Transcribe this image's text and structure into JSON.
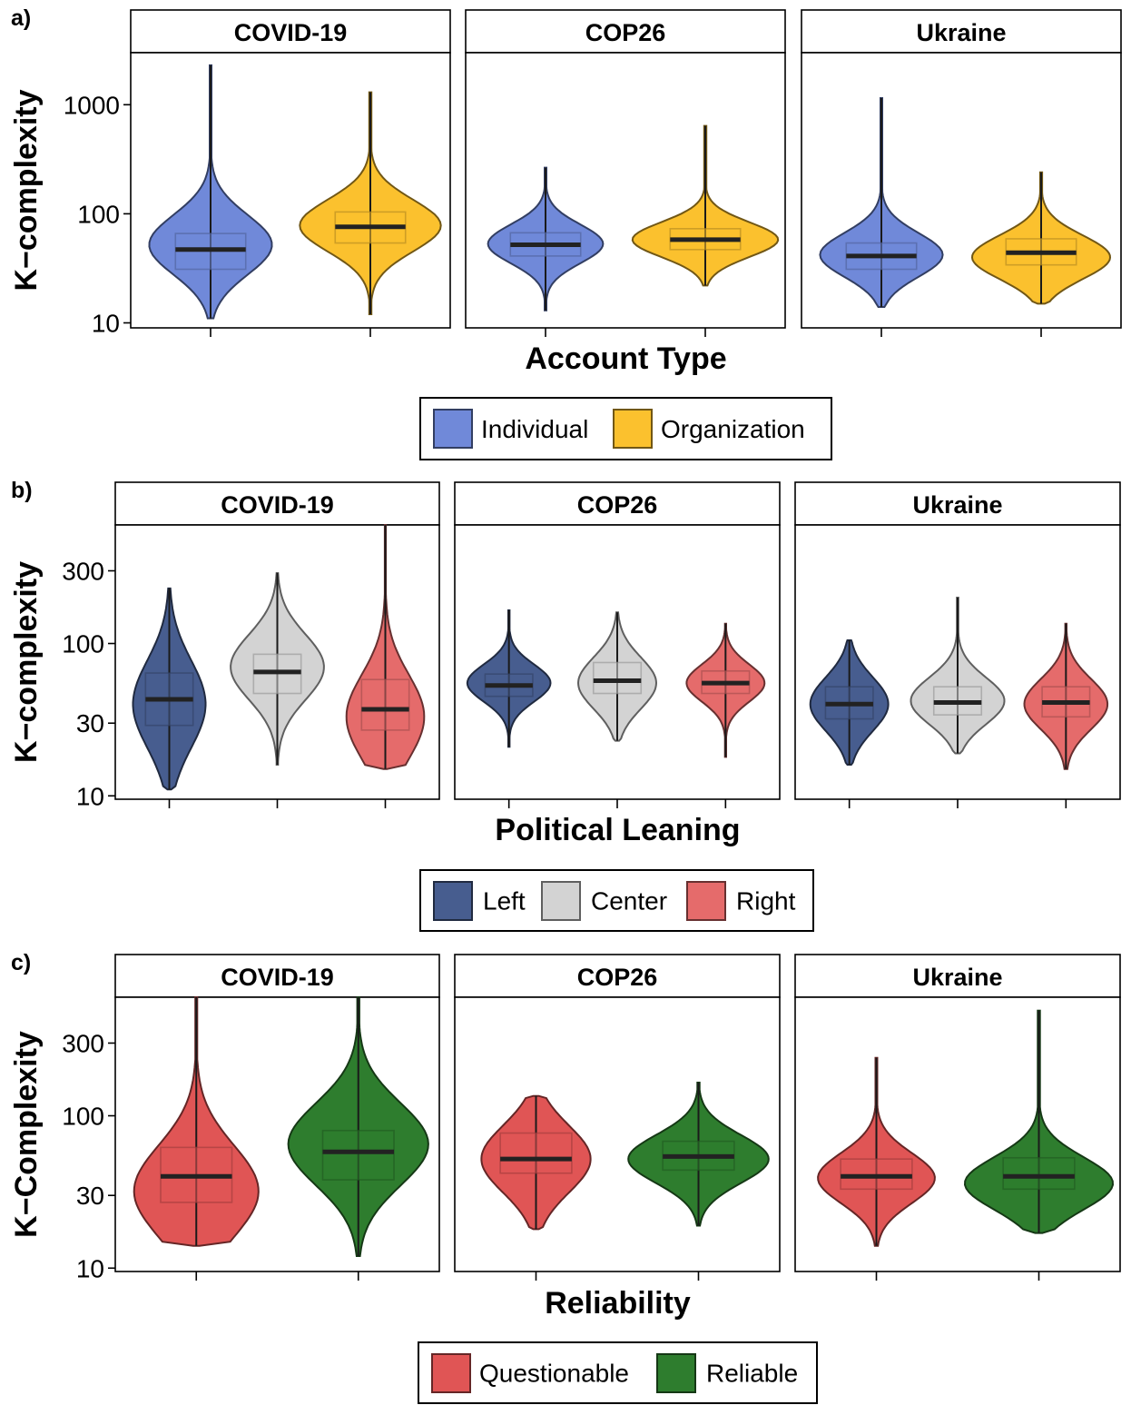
{
  "chart_data": [
    {
      "panel_label": "a)",
      "type": "violin",
      "facets": [
        "COVID-19",
        "COP26",
        "Ukraine"
      ],
      "xlabel": "Account Type",
      "ylabel": "K−complexity",
      "yscale": "log10",
      "ylim": [
        9,
        3000
      ],
      "yticks": [
        10,
        100,
        1000
      ],
      "ytick_labels": [
        "10",
        "100",
        "1000"
      ],
      "legend": [
        {
          "label": "Individual",
          "color": "#7089D9"
        },
        {
          "label": "Organization",
          "color": "#FBC12E"
        }
      ],
      "violins": [
        [
          {
            "group": "Individual",
            "min": 11,
            "q1": 31,
            "median": 47,
            "q3": 66,
            "max": 2300,
            "peak": 52,
            "width": 0.8
          },
          {
            "group": "Organization",
            "min": 12,
            "q1": 54,
            "median": 76,
            "q3": 104,
            "max": 1300,
            "peak": 78,
            "width": 0.92
          }
        ],
        [
          {
            "group": "Individual",
            "min": 13,
            "q1": 41,
            "median": 52,
            "q3": 67,
            "max": 265,
            "peak": 53,
            "width": 0.75
          },
          {
            "group": "Organization",
            "min": 22,
            "q1": 47,
            "median": 58,
            "q3": 73,
            "max": 640,
            "peak": 58,
            "width": 0.95
          }
        ],
        [
          {
            "group": "Individual",
            "min": 14,
            "q1": 31,
            "median": 41,
            "q3": 54,
            "max": 1150,
            "peak": 42,
            "width": 0.8
          },
          {
            "group": "Organization",
            "min": 15,
            "q1": 34,
            "median": 44,
            "q3": 59,
            "max": 240,
            "peak": 40,
            "width": 0.9
          }
        ]
      ]
    },
    {
      "panel_label": "b)",
      "type": "violin",
      "facets": [
        "COVID-19",
        "COP26",
        "Ukraine"
      ],
      "xlabel": "Political Leaning",
      "ylabel": "K−complexity",
      "yscale": "log10",
      "ylim": [
        9.5,
        600
      ],
      "yticks": [
        10,
        30,
        100,
        300
      ],
      "ytick_labels": [
        "10",
        "30",
        "100",
        "300"
      ],
      "legend": [
        {
          "label": "Left",
          "color": "#475D8F"
        },
        {
          "label": "Center",
          "color": "#D3D3D3"
        },
        {
          "label": "Right",
          "color": "#E56B6B"
        }
      ],
      "violins": [
        [
          {
            "group": "Left",
            "min": 11,
            "q1": 29,
            "median": 43,
            "q3": 64,
            "max": 230,
            "peak": 40,
            "width": 0.7
          },
          {
            "group": "Center",
            "min": 16,
            "q1": 47,
            "median": 65,
            "q3": 85,
            "max": 290,
            "peak": 70,
            "width": 0.9
          },
          {
            "group": "Right",
            "min": 15,
            "q1": 27,
            "median": 37,
            "q3": 58,
            "max": 600,
            "peak": 33,
            "width": 0.75
          }
        ],
        [
          {
            "group": "Left",
            "min": 21,
            "q1": 45,
            "median": 53,
            "q3": 63,
            "max": 165,
            "peak": 55,
            "width": 0.8
          },
          {
            "group": "Center",
            "min": 23,
            "q1": 47,
            "median": 57,
            "q3": 75,
            "max": 160,
            "peak": 55,
            "width": 0.75
          },
          {
            "group": "Right",
            "min": 18,
            "q1": 47,
            "median": 55,
            "q3": 66,
            "max": 135,
            "peak": 55,
            "width": 0.75
          }
        ],
        [
          {
            "group": "Left",
            "min": 16,
            "q1": 32,
            "median": 40,
            "q3": 52,
            "max": 105,
            "peak": 40,
            "width": 0.75
          },
          {
            "group": "Center",
            "min": 19,
            "q1": 34,
            "median": 41,
            "q3": 52,
            "max": 200,
            "peak": 42,
            "width": 0.9
          },
          {
            "group": "Right",
            "min": 15,
            "q1": 33,
            "median": 41,
            "q3": 52,
            "max": 135,
            "peak": 40,
            "width": 0.8
          }
        ]
      ]
    },
    {
      "panel_label": "c)",
      "type": "violin",
      "facets": [
        "COVID-19",
        "COP26",
        "Ukraine"
      ],
      "xlabel": "Reliability",
      "ylabel": "K−Complexity",
      "yscale": "log10",
      "ylim": [
        9.5,
        600
      ],
      "yticks": [
        10,
        30,
        100,
        300
      ],
      "ytick_labels": [
        "10",
        "30",
        "100",
        "300"
      ],
      "legend": [
        {
          "label": "Questionable",
          "color": "#E05555"
        },
        {
          "label": "Reliable",
          "color": "#2E7D2E"
        }
      ],
      "violins": [
        [
          {
            "group": "Questionable",
            "min": 14,
            "q1": 27,
            "median": 40,
            "q3": 62,
            "max": 600,
            "peak": 32,
            "width": 0.8
          },
          {
            "group": "Reliable",
            "min": 12,
            "q1": 38,
            "median": 58,
            "q3": 80,
            "max": 600,
            "peak": 65,
            "width": 0.9
          }
        ],
        [
          {
            "group": "Questionable",
            "min": 18,
            "q1": 42,
            "median": 52,
            "q3": 77,
            "max": 135,
            "peak": 52,
            "width": 0.7
          },
          {
            "group": "Reliable",
            "min": 19,
            "q1": 44,
            "median": 54,
            "q3": 68,
            "max": 165,
            "peak": 52,
            "width": 0.9
          }
        ],
        [
          {
            "group": "Questionable",
            "min": 14,
            "q1": 33,
            "median": 40,
            "q3": 52,
            "max": 240,
            "peak": 39,
            "width": 0.75
          },
          {
            "group": "Reliable",
            "min": 17,
            "q1": 33,
            "median": 40,
            "q3": 53,
            "max": 490,
            "peak": 36,
            "width": 0.95
          }
        ]
      ]
    }
  ]
}
